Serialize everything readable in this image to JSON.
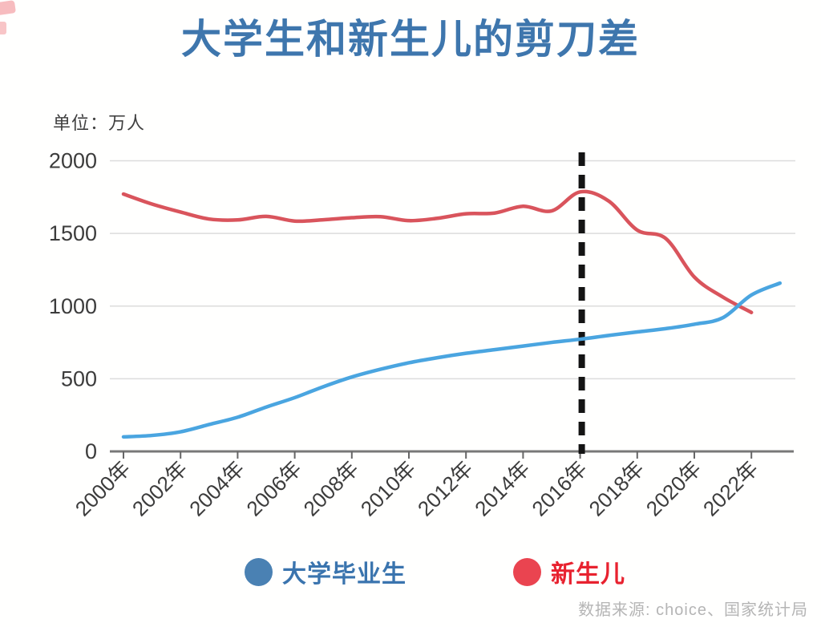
{
  "page": {
    "title": "大学生和新生儿的剪刀差",
    "unit_label": "单位：万人",
    "source_note": "数据来源: choice、国家统计局"
  },
  "legend": {
    "items": [
      {
        "label": "大学毕业生",
        "text_color": "#3a74ae",
        "dot_color": "#4a81b3"
      },
      {
        "label": "新生儿",
        "text_color": "#e8222f",
        "dot_color": "#ea4450"
      }
    ]
  },
  "chart_data": {
    "type": "line",
    "title": "大学生和新生儿的剪刀差",
    "unit": "万人",
    "ylabel": "万人",
    "ylim": [
      0,
      2000
    ],
    "grid": "horizontal",
    "grid_color": "#dcdcdc",
    "axis_color": "#787878",
    "tick_text_color": "#3c3c3c",
    "y_ticks": [
      {
        "value": 0,
        "label": "0"
      },
      {
        "value": 500,
        "label": "500"
      },
      {
        "value": 1000,
        "label": "1000"
      },
      {
        "value": 1500,
        "label": "1500"
      },
      {
        "value": 2000,
        "label": "2000"
      }
    ],
    "x_ticks": [
      {
        "year": 2000,
        "label": "2000年"
      },
      {
        "year": 2002,
        "label": "2002年"
      },
      {
        "year": 2004,
        "label": "2004年"
      },
      {
        "year": 2006,
        "label": "2006年"
      },
      {
        "year": 2008,
        "label": "2008年"
      },
      {
        "year": 2010,
        "label": "2010年"
      },
      {
        "year": 2012,
        "label": "2012年"
      },
      {
        "year": 2014,
        "label": "2014年"
      },
      {
        "year": 2016,
        "label": "2016年"
      },
      {
        "year": 2018,
        "label": "2018年"
      },
      {
        "year": 2020,
        "label": "2020年"
      },
      {
        "year": 2022,
        "label": "2022年"
      }
    ],
    "annotation": {
      "type": "vertical_dashed_line",
      "year": 2016,
      "color": "#141414"
    },
    "series": [
      {
        "name": "大学毕业生",
        "color": "#4aa5e0",
        "x": [
          2000,
          2001,
          2002,
          2003,
          2004,
          2005,
          2006,
          2007,
          2008,
          2009,
          2010,
          2011,
          2012,
          2013,
          2014,
          2015,
          2016,
          2017,
          2018,
          2019,
          2020,
          2021,
          2022,
          2023
        ],
        "values": [
          100,
          110,
          135,
          185,
          235,
          305,
          370,
          445,
          512,
          565,
          610,
          645,
          675,
          700,
          725,
          750,
          772,
          798,
          822,
          845,
          875,
          920,
          1076,
          1158
        ]
      },
      {
        "name": "新生儿",
        "color": "#d9545c",
        "x": [
          2000,
          2001,
          2002,
          2003,
          2004,
          2005,
          2006,
          2007,
          2008,
          2009,
          2010,
          2011,
          2012,
          2013,
          2014,
          2015,
          2016,
          2017,
          2018,
          2019,
          2020,
          2021,
          2022
        ],
        "values": [
          1771,
          1702,
          1647,
          1599,
          1593,
          1617,
          1585,
          1594,
          1608,
          1615,
          1588,
          1604,
          1635,
          1640,
          1687,
          1655,
          1786,
          1723,
          1523,
          1465,
          1200,
          1062,
          956
        ]
      }
    ]
  }
}
